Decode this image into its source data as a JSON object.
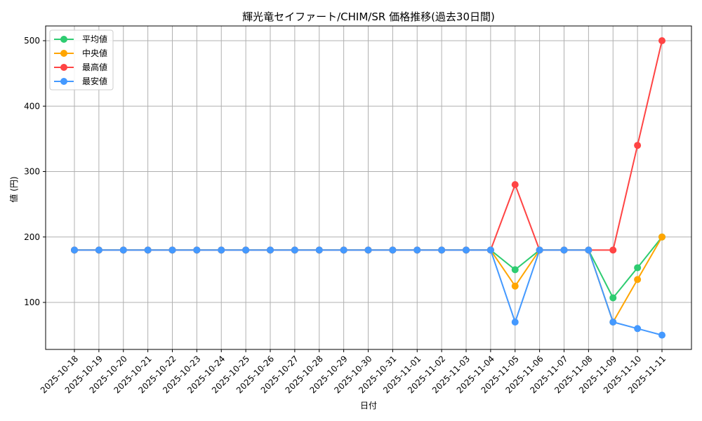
{
  "chart_data": {
    "type": "line",
    "title": "輝光竜セイファート/CHIM/SR 価格推移(過去30日間)",
    "xlabel": "日付",
    "ylabel": "値 (円)",
    "ylim": [
      25,
      522
    ],
    "yticks": [
      100,
      200,
      300,
      400,
      500
    ],
    "grid": true,
    "legend_position": "upper left",
    "categories": [
      "2025-10-18",
      "2025-10-19",
      "2025-10-20",
      "2025-10-21",
      "2025-10-22",
      "2025-10-23",
      "2025-10-24",
      "2025-10-25",
      "2025-10-26",
      "2025-10-27",
      "2025-10-28",
      "2025-10-29",
      "2025-10-30",
      "2025-10-31",
      "2025-11-01",
      "2025-11-02",
      "2025-11-03",
      "2025-11-04",
      "2025-11-05",
      "2025-11-06",
      "2025-11-07",
      "2025-11-08",
      "2025-11-09",
      "2025-11-10",
      "2025-11-11"
    ],
    "series": [
      {
        "name": "平均値",
        "color": "#2ecc71",
        "values": [
          180,
          180,
          180,
          180,
          180,
          180,
          180,
          180,
          180,
          180,
          180,
          180,
          180,
          180,
          180,
          180,
          180,
          180,
          150,
          180,
          180,
          180,
          107,
          153,
          200
        ]
      },
      {
        "name": "中央値",
        "color": "#ffa500",
        "values": [
          180,
          180,
          180,
          180,
          180,
          180,
          180,
          180,
          180,
          180,
          180,
          180,
          180,
          180,
          180,
          180,
          180,
          180,
          125,
          180,
          180,
          180,
          70,
          135,
          200
        ]
      },
      {
        "name": "最高値",
        "color": "#ff4444",
        "values": [
          180,
          180,
          180,
          180,
          180,
          180,
          180,
          180,
          180,
          180,
          180,
          180,
          180,
          180,
          180,
          180,
          180,
          180,
          280,
          180,
          180,
          180,
          180,
          340,
          500
        ]
      },
      {
        "name": "最安値",
        "color": "#4499ff",
        "values": [
          180,
          180,
          180,
          180,
          180,
          180,
          180,
          180,
          180,
          180,
          180,
          180,
          180,
          180,
          180,
          180,
          180,
          180,
          70,
          180,
          180,
          180,
          70,
          60,
          50
        ]
      }
    ]
  }
}
